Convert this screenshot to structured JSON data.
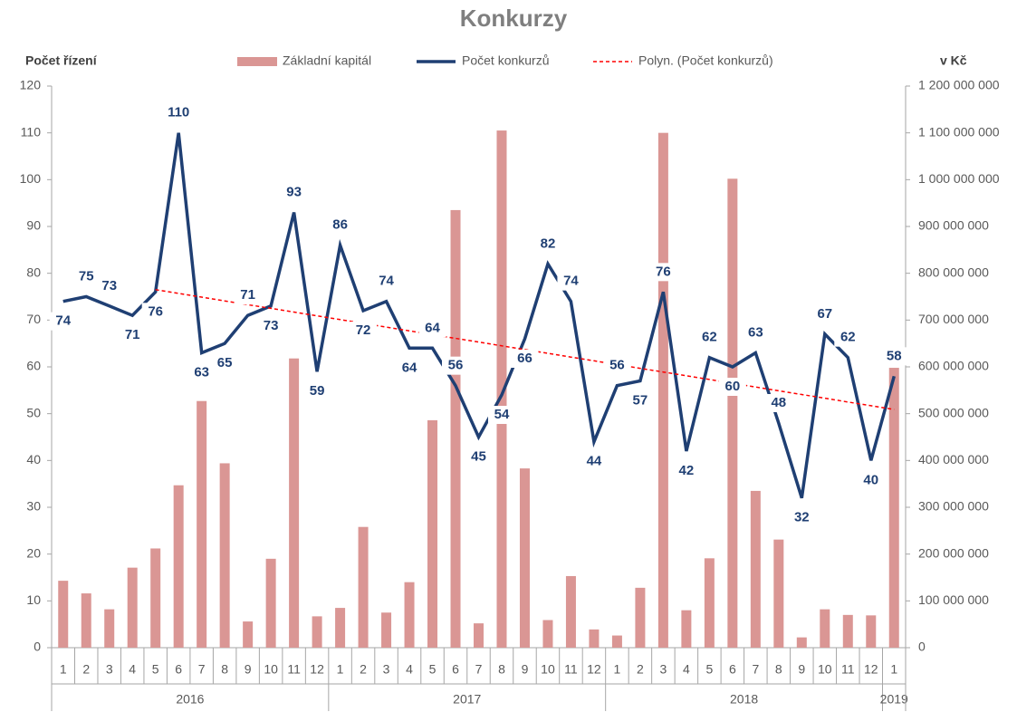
{
  "chart_data": {
    "type": "bar_line",
    "title": "Konkurzy",
    "y_label": "Počet řízení",
    "y2_label": "v Kč",
    "categories": [
      "1",
      "2",
      "3",
      "4",
      "5",
      "6",
      "7",
      "8",
      "9",
      "10",
      "11",
      "12",
      "1",
      "2",
      "3",
      "4",
      "5",
      "6",
      "7",
      "8",
      "9",
      "10",
      "11",
      "12",
      "1",
      "2",
      "3",
      "4",
      "5",
      "6",
      "7",
      "8",
      "9",
      "10",
      "11",
      "12",
      "1"
    ],
    "category_groups": [
      {
        "label": "2016",
        "span": 12
      },
      {
        "label": "2017",
        "span": 12
      },
      {
        "label": "2018",
        "span": 12
      },
      {
        "label": "2019",
        "span": 1
      }
    ],
    "series": [
      {
        "name": "Základní kapitál",
        "type": "bar",
        "axis": "y2",
        "color": "#da9694",
        "values": [
          143000000,
          116000000,
          82000000,
          171000000,
          212000000,
          347000000,
          527000000,
          394000000,
          56000000,
          190000000,
          618000000,
          67000000,
          85000000,
          258000000,
          75000000,
          140000000,
          486000000,
          935000000,
          52000000,
          1105000000,
          383000000,
          59000000,
          153000000,
          39000000,
          26000000,
          128000000,
          1100000000,
          80000000,
          191000000,
          1002000000,
          335000000,
          231000000,
          22000000,
          82000000,
          70000000,
          69000000,
          598000000
        ]
      },
      {
        "name": "Počet konkurzů",
        "type": "line",
        "axis": "y",
        "color": "#1f3f73",
        "data_labels": true,
        "values": [
          74,
          75,
          73,
          71,
          76,
          110,
          63,
          65,
          71,
          73,
          93,
          59,
          86,
          72,
          74,
          64,
          64,
          56,
          45,
          54,
          66,
          82,
          74,
          44,
          56,
          57,
          76,
          42,
          62,
          60,
          63,
          48,
          32,
          67,
          62,
          40,
          58
        ]
      },
      {
        "name": "Polyn. (Počet konkurzů)",
        "type": "line",
        "dashed": true,
        "axis": "y",
        "color": "#ff0000",
        "values": [
          null,
          null,
          null,
          null,
          76.5,
          75.7,
          74.9,
          74.1,
          73.3,
          72.5,
          71.7,
          70.9,
          70.1,
          69.3,
          68.5,
          67.7,
          66.9,
          66.1,
          65.3,
          64.5,
          63.7,
          62.9,
          62.1,
          61.3,
          60.5,
          59.7,
          58.9,
          58.1,
          57.3,
          56.5,
          55.7,
          54.9,
          54.1,
          53.3,
          52.5,
          51.7,
          50.9
        ]
      }
    ],
    "ylim": [
      0,
      120
    ],
    "yticks": [
      0,
      10,
      20,
      30,
      40,
      50,
      60,
      70,
      80,
      90,
      100,
      110,
      120
    ],
    "y2lim": [
      0,
      1200000000
    ],
    "y2ticks": [
      0,
      {
        "value": 100000000,
        "label": "100 000 000"
      },
      {
        "value": 200000000,
        "label": "200 000 000"
      },
      {
        "value": 300000000,
        "label": "300 000 000"
      },
      {
        "value": 400000000,
        "label": "400 000 000"
      },
      {
        "value": 500000000,
        "label": "500 000 000"
      },
      {
        "value": 600000000,
        "label": "600 000 000"
      },
      {
        "value": 700000000,
        "label": "700 000 000"
      },
      {
        "value": 800000000,
        "label": "800 000 000"
      },
      {
        "value": 900000000,
        "label": "900 000 000"
      },
      {
        "value": 1000000000,
        "label": "1 000 000 000"
      },
      {
        "value": 1100000000,
        "label": "1 100 000 000"
      },
      {
        "value": 1200000000,
        "label": "1 200 000 000"
      }
    ],
    "grid": false
  }
}
